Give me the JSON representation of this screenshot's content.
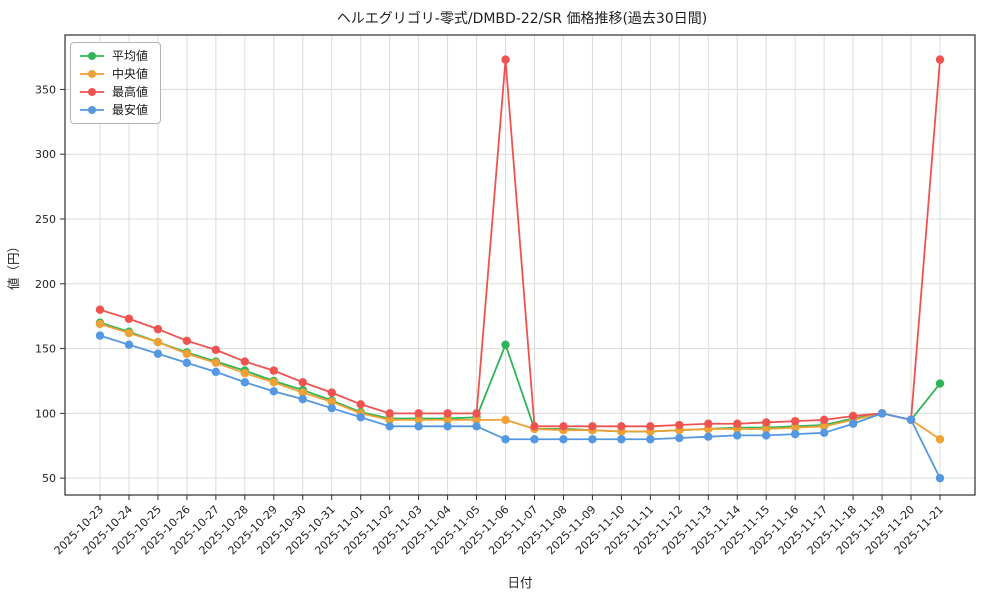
{
  "chart_data": {
    "type": "line",
    "title": "ヘルエグリゴリ-零式/DMBD-22/SR 価格推移(過去30日間)",
    "xlabel": "日付",
    "ylabel": "値（円）",
    "grid": true,
    "legend_position": "upper-left",
    "ylim": [
      37,
      392
    ],
    "yticks": [
      50,
      100,
      150,
      200,
      250,
      300,
      350
    ],
    "x": [
      "2025-10-23",
      "2025-10-24",
      "2025-10-25",
      "2025-10-26",
      "2025-10-27",
      "2025-10-28",
      "2025-10-29",
      "2025-10-30",
      "2025-10-31",
      "2025-11-01",
      "2025-11-02",
      "2025-11-03",
      "2025-11-04",
      "2025-11-05",
      "2025-11-06",
      "2025-11-07",
      "2025-11-08",
      "2025-11-09",
      "2025-11-10",
      "2025-11-11",
      "2025-11-12",
      "2025-11-13",
      "2025-11-14",
      "2025-11-15",
      "2025-11-16",
      "2025-11-17",
      "2025-11-18",
      "2025-11-19",
      "2025-11-20",
      "2025-11-21"
    ],
    "series": [
      {
        "name": "平均値",
        "color": "#2fb457",
        "values": [
          170,
          163,
          155,
          147,
          140,
          133,
          125,
          118,
          110,
          101,
          96,
          96,
          96,
          97,
          153,
          88,
          88,
          87,
          86,
          86,
          87,
          88,
          89,
          89,
          90,
          91,
          96,
          100,
          95,
          123
        ]
      },
      {
        "name": "中央値",
        "color": "#f0a136",
        "values": [
          169,
          162,
          155,
          146,
          139,
          131,
          124,
          116,
          109,
          100,
          95,
          95,
          95,
          95,
          95,
          88,
          87,
          87,
          86,
          86,
          87,
          88,
          88,
          88,
          89,
          90,
          95,
          100,
          95,
          80
        ]
      },
      {
        "name": "最高値",
        "color": "#ef5350",
        "values": [
          180,
          173,
          165,
          156,
          149,
          140,
          133,
          124,
          116,
          107,
          100,
          100,
          100,
          100,
          373,
          90,
          90,
          90,
          90,
          90,
          91,
          92,
          92,
          93,
          94,
          95,
          98,
          100,
          95,
          373
        ]
      },
      {
        "name": "最安値",
        "color": "#5598e2",
        "values": [
          160,
          153,
          146,
          139,
          132,
          124,
          117,
          111,
          104,
          97,
          90,
          90,
          90,
          90,
          80,
          80,
          80,
          80,
          80,
          80,
          81,
          82,
          83,
          83,
          84,
          85,
          92,
          100,
          95,
          50
        ]
      }
    ]
  }
}
